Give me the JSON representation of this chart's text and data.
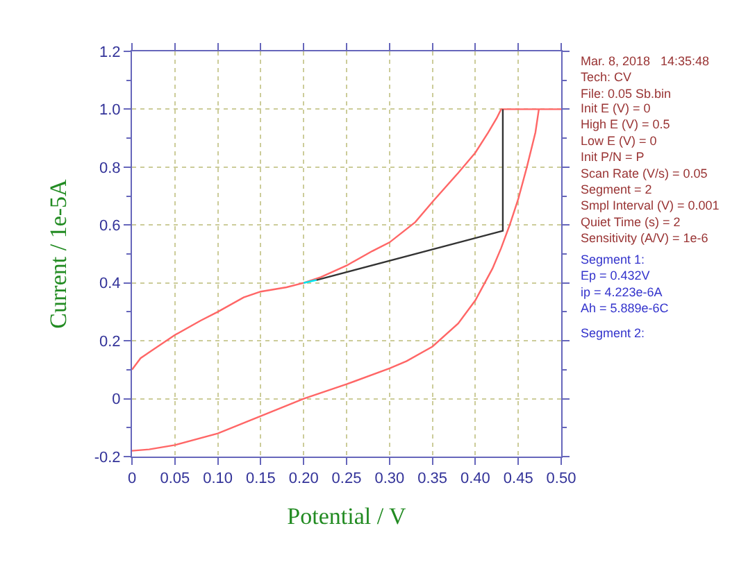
{
  "chart_data": {
    "type": "line",
    "xlabel": "Potential / V",
    "ylabel": "Current / 1e-5A",
    "xlim": [
      0,
      0.5
    ],
    "ylim": [
      -0.2,
      1.2
    ],
    "xticks": [
      0,
      0.05,
      {
        "value": 0.1,
        "label": "0.10"
      },
      0.15,
      {
        "value": 0.2,
        "label": "0.20"
      },
      0.25,
      {
        "value": 0.3,
        "label": "0.30"
      },
      0.35,
      {
        "value": 0.4,
        "label": "0.40"
      },
      0.45,
      {
        "value": 0.5,
        "label": "0.50"
      }
    ],
    "yticks": [
      -0.2,
      0,
      0.2,
      0.4,
      0.6,
      0.8,
      {
        "value": 1.0,
        "label": "1.0"
      },
      1.2
    ],
    "grid": true,
    "legend": false,
    "marker": "none",
    "line_style": "solid",
    "series": [
      {
        "color": "#ff6666",
        "x": [
          0,
          0.01,
          0.02,
          0.05,
          0.08,
          0.1,
          0.13,
          0.15,
          0.18,
          0.2,
          0.22,
          0.25,
          0.28,
          0.3,
          0.33,
          0.35,
          0.38,
          0.4,
          0.415,
          0.425,
          0.43,
          0.45,
          0.47,
          0.5
        ],
        "values": [
          0.1,
          0.14,
          0.16,
          0.22,
          0.27,
          0.3,
          0.35,
          0.37,
          0.385,
          0.4,
          0.42,
          0.46,
          0.51,
          0.54,
          0.61,
          0.68,
          0.78,
          0.85,
          0.92,
          0.97,
          1.0,
          1.0,
          1.0,
          1.0
        ]
      },
      {
        "color": "#ff6666",
        "x": [
          0.474,
          0.47,
          0.46,
          0.45,
          0.44,
          0.43,
          0.42,
          0.4,
          0.38,
          0.35,
          0.32,
          0.3,
          0.25,
          0.2,
          0.15,
          0.1,
          0.05,
          0.02,
          0
        ],
        "values": [
          1.0,
          0.92,
          0.8,
          0.69,
          0.6,
          0.52,
          0.45,
          0.34,
          0.26,
          0.18,
          0.13,
          0.105,
          0.05,
          0.0,
          -0.06,
          -0.12,
          -0.16,
          -0.175,
          -0.18
        ]
      },
      {
        "color": "#00e5ee",
        "x": [
          0.2,
          0.215
        ],
        "values": [
          0.4,
          0.41
        ]
      },
      {
        "color": "#333333",
        "x": [
          0.215,
          0.432,
          0.432
        ],
        "values": [
          0.41,
          0.58,
          1.0
        ]
      }
    ],
    "annotations": [
      "Mar. 8, 2018   14:35:48\nTech: CV\nFile: 0.05 Sb.bin",
      "Init E (V) = 0\nHigh E (V) = 0.5\nLow E (V) = 0\nInit P/N = P\nScan Rate (V/s) = 0.05\nSegment = 2\nSmpl Interval (V) = 0.001\nQuiet Time (s) = 2\nSensitivity (A/V) = 1e-6",
      "Segment 1:\nEp = 0.432V\nip = 4.223e-6A\nAh = 5.889e-6C",
      "Segment 2:"
    ]
  }
}
